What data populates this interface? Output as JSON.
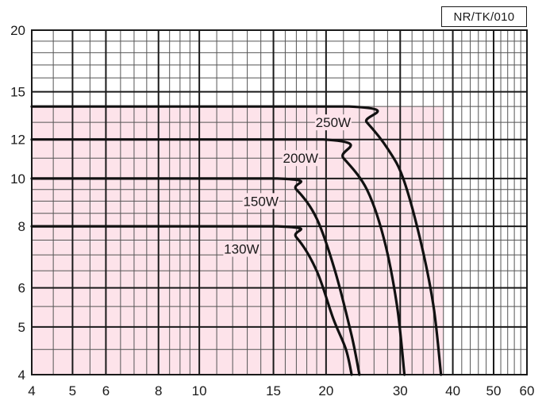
{
  "chart_code": "NR/TK/010",
  "colors": {
    "region_fill": "#fde3ea",
    "grid_major": "#1a1a1a",
    "grid_minor": "#555555",
    "curve": "#111111",
    "text": "#1a1a1a"
  },
  "chart_data": {
    "type": "line",
    "title": "",
    "xlabel": "",
    "ylabel": "",
    "x_scale": "log",
    "y_scale": "log",
    "xlim": [
      4,
      60
    ],
    "ylim": [
      4,
      20
    ],
    "grid": true,
    "x_ticks": [
      4,
      5,
      6,
      8,
      10,
      15,
      20,
      30,
      40,
      50,
      60
    ],
    "x_tick_labels": [
      "4",
      "5",
      "6",
      "8",
      "10",
      "15",
      "20",
      "30",
      "40",
      "50",
      "60"
    ],
    "y_ticks": [
      4,
      5,
      6,
      8,
      10,
      12,
      15,
      20
    ],
    "y_tick_labels": [
      "4",
      "5",
      "6",
      "8",
      "10",
      "12",
      "15",
      "20"
    ],
    "shaded_region": {
      "xmax": 38,
      "ymax": 14,
      "color": "pink"
    },
    "series": [
      {
        "name": "250W",
        "points": [
          [
            4,
            14
          ],
          [
            22.7,
            14
          ],
          [
            25,
            13
          ],
          [
            28,
            11.5
          ],
          [
            30.5,
            10
          ],
          [
            33.5,
            7.5
          ],
          [
            36,
            5.5
          ],
          [
            37.5,
            4
          ]
        ]
      },
      {
        "name": "200W",
        "points": [
          [
            4,
            12
          ],
          [
            19.7,
            12
          ],
          [
            22,
            11
          ],
          [
            25,
            9.5
          ],
          [
            27.5,
            7.5
          ],
          [
            29.5,
            5.5
          ],
          [
            30.7,
            4
          ]
        ]
      },
      {
        "name": "150W",
        "points": [
          [
            4,
            10
          ],
          [
            15.3,
            10
          ],
          [
            17,
            9.5
          ],
          [
            19,
            8.3
          ],
          [
            21,
            6.5
          ],
          [
            23,
            4.8
          ],
          [
            24,
            4
          ]
        ]
      },
      {
        "name": "130W",
        "points": [
          [
            4,
            8
          ],
          [
            15.3,
            8
          ],
          [
            17,
            7.6
          ],
          [
            19,
            6.5
          ],
          [
            20.8,
            5.2
          ],
          [
            22.3,
            4.5
          ],
          [
            23,
            4
          ]
        ]
      }
    ]
  }
}
